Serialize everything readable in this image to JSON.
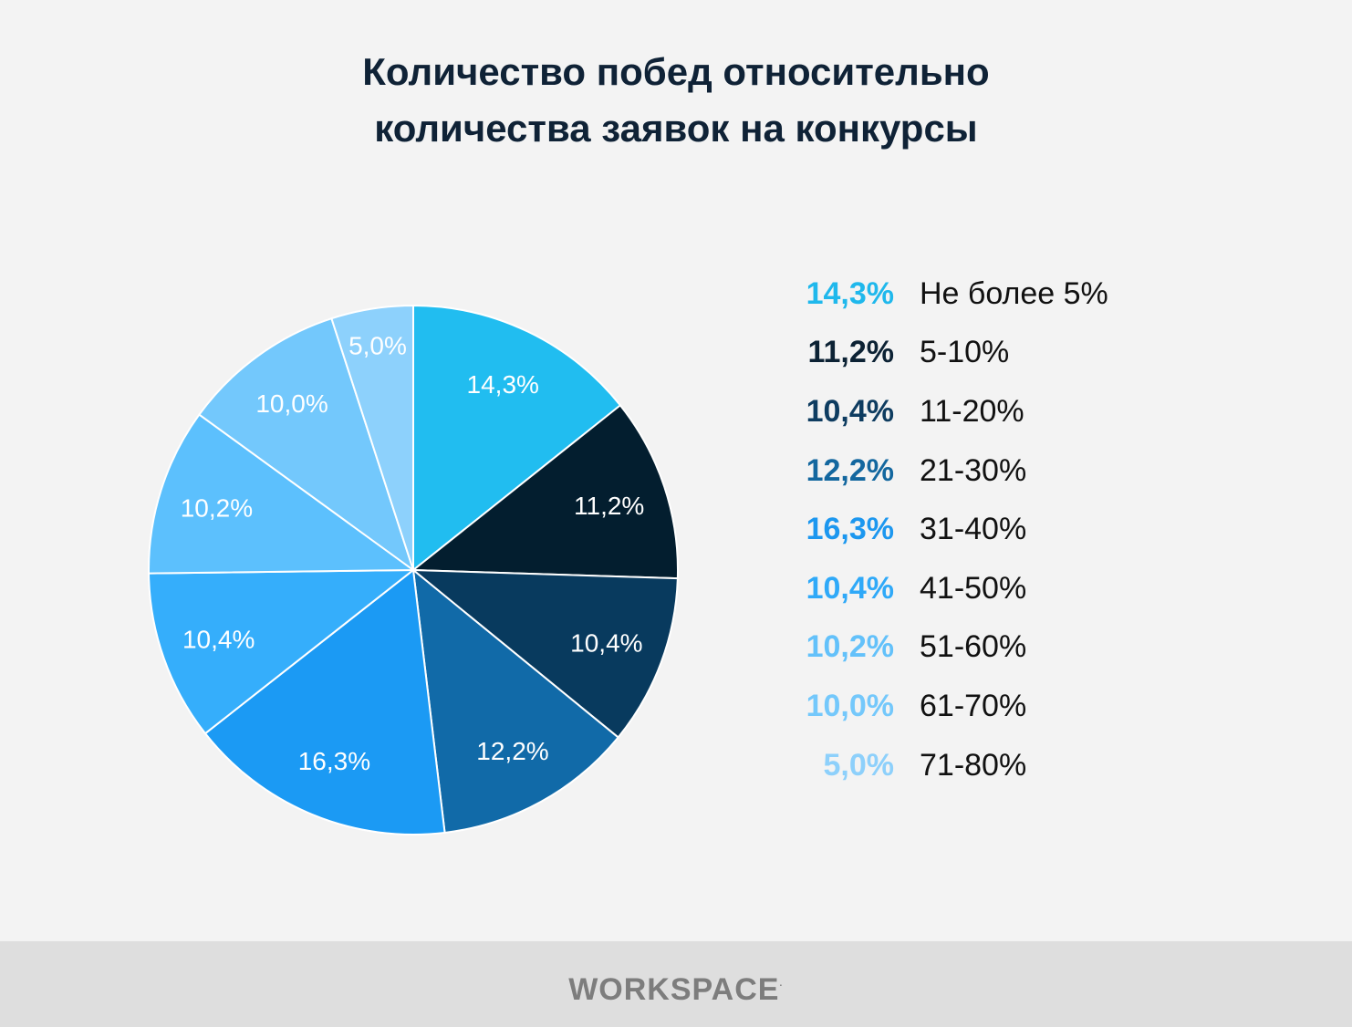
{
  "chart_data": {
    "type": "pie",
    "title_lines": [
      "Количество побед относительно",
      "количества заявок на конкурсы"
    ],
    "slices": [
      {
        "label": "Не более 5%",
        "value": 14.3,
        "display": "14,3%",
        "color": "#21bdf0"
      },
      {
        "label": "5-10%",
        "value": 11.2,
        "display": "11,2%",
        "color": "#031e2f"
      },
      {
        "label": "11-20%",
        "value": 10.4,
        "display": "10,4%",
        "color": "#083a5e"
      },
      {
        "label": "21-30%",
        "value": 12.2,
        "display": "12,2%",
        "color": "#116aa8"
      },
      {
        "label": "31-40%",
        "value": 16.3,
        "display": "16,3%",
        "color": "#1b9af4"
      },
      {
        "label": "41-50%",
        "value": 10.4,
        "display": "10,4%",
        "color": "#35aefb"
      },
      {
        "label": "51-60%",
        "value": 10.2,
        "display": "10,2%",
        "color": "#5cc0fd"
      },
      {
        "label": "61-70%",
        "value": 10.0,
        "display": "10,0%",
        "color": "#73c8fc"
      },
      {
        "label": "71-80%",
        "value": 5.0,
        "display": "5,0%",
        "color": "#8dd1fc"
      }
    ],
    "legend_position": "right"
  },
  "legend_value_colors": [
    "#1fb8ec",
    "#0c2234",
    "#0e3c60",
    "#13679f",
    "#1c97ef",
    "#2fa9f8",
    "#63c1fa",
    "#74c8fb",
    "#8dd0fb"
  ],
  "footer": {
    "brand_text": "WORKSPACE",
    "brand_mark": "·"
  }
}
